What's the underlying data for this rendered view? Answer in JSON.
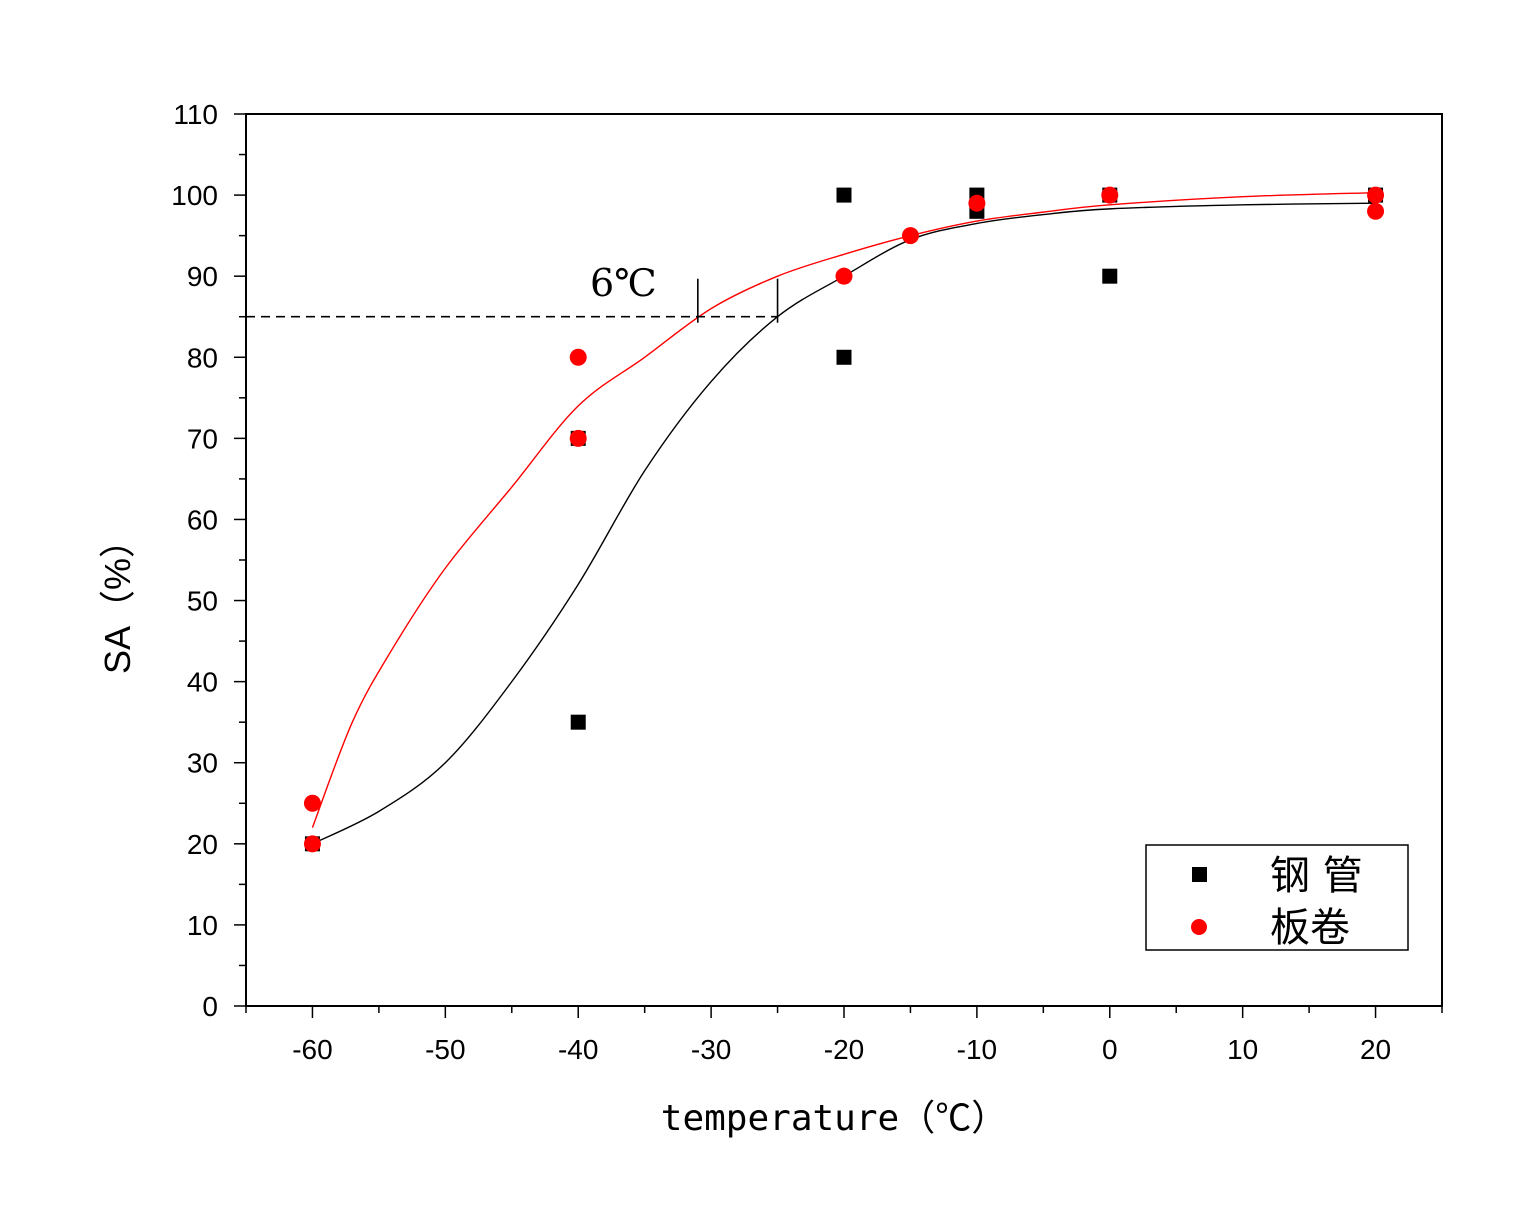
{
  "chart_data": {
    "type": "scatter",
    "xlabel": "temperature（℃）",
    "ylabel": "SA（%）",
    "xlim": [
      -65,
      25
    ],
    "ylim": [
      0,
      110
    ],
    "x_ticks": [
      -60,
      -50,
      -40,
      -30,
      -20,
      -10,
      0,
      10,
      20
    ],
    "y_ticks": [
      0,
      10,
      20,
      30,
      40,
      50,
      60,
      70,
      80,
      90,
      100,
      110
    ],
    "grid": false,
    "legend_position": "bottom-right",
    "series": [
      {
        "name": "钢 管",
        "marker": "square",
        "color": "#000000",
        "points": [
          [
            -60,
            20
          ],
          [
            -40,
            35
          ],
          [
            -40,
            70
          ],
          [
            -20,
            80
          ],
          [
            -20,
            100
          ],
          [
            -10,
            98
          ],
          [
            -10,
            100
          ],
          [
            0,
            90
          ],
          [
            0,
            100
          ],
          [
            20,
            100
          ]
        ],
        "fit_curve": [
          [
            -60,
            20
          ],
          [
            -55,
            24
          ],
          [
            -50,
            30
          ],
          [
            -45,
            40
          ],
          [
            -40,
            52
          ],
          [
            -35,
            66
          ],
          [
            -30,
            77
          ],
          [
            -25,
            85
          ],
          [
            -20,
            90
          ],
          [
            -15,
            94.5
          ],
          [
            -10,
            96.5
          ],
          [
            -5,
            97.6
          ],
          [
            0,
            98.3
          ],
          [
            10,
            98.8
          ],
          [
            20,
            99
          ]
        ]
      },
      {
        "name": "板卷",
        "marker": "circle",
        "color": "#ff0000",
        "points": [
          [
            -60,
            25
          ],
          [
            -60,
            20
          ],
          [
            -40,
            80
          ],
          [
            -40,
            70
          ],
          [
            -20,
            90
          ],
          [
            -15,
            95
          ],
          [
            -10,
            99
          ],
          [
            0,
            100
          ],
          [
            20,
            100
          ],
          [
            20,
            98
          ]
        ],
        "fit_curve": [
          [
            -60,
            22
          ],
          [
            -57,
            35
          ],
          [
            -54,
            44
          ],
          [
            -50,
            54
          ],
          [
            -45,
            64
          ],
          [
            -40,
            74
          ],
          [
            -35,
            80
          ],
          [
            -30,
            86
          ],
          [
            -25,
            90
          ],
          [
            -20,
            92.7
          ],
          [
            -15,
            95
          ],
          [
            -10,
            96.8
          ],
          [
            -5,
            97.9
          ],
          [
            0,
            98.8
          ],
          [
            10,
            99.8
          ],
          [
            20,
            100.3
          ]
        ]
      }
    ],
    "reference_line": {
      "y": 85,
      "x_end": -25,
      "style": "dashed"
    },
    "markers": [
      -31,
      -25
    ],
    "annotation": "6℃"
  }
}
